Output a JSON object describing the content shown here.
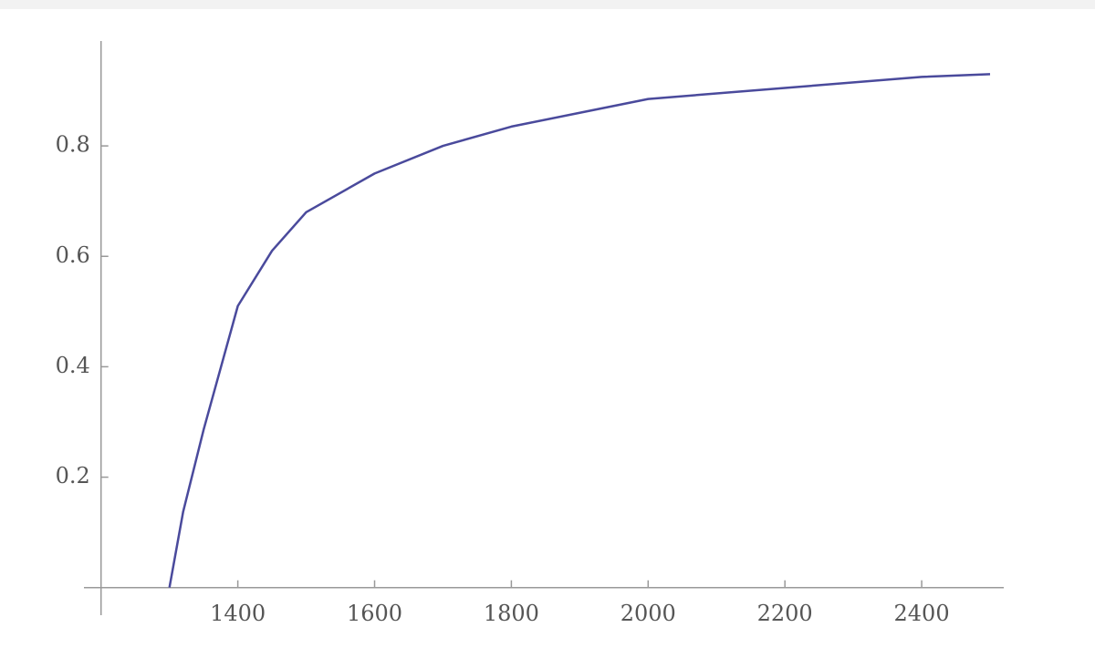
{
  "chart_data": {
    "type": "line",
    "x": [
      1300,
      1320,
      1350,
      1400,
      1450,
      1500,
      1600,
      1700,
      1800,
      1900,
      2000,
      2200,
      2400,
      2500
    ],
    "series": [
      {
        "color": "#4a4a9c",
        "values": [
          0,
          0.137,
          0.286,
          0.51,
          0.61,
          0.68,
          0.75,
          0.8,
          0.835,
          0.86,
          0.885,
          0.905,
          0.925,
          0.93
        ]
      }
    ],
    "xlim": [
      1175,
      2520
    ],
    "ylim": [
      -0.05,
      0.99
    ],
    "xticks": [
      1400,
      1600,
      1800,
      2000,
      2200,
      2400
    ],
    "yticks": [
      0.2,
      0.4,
      0.6,
      0.8
    ],
    "axes_origin": [
      1200,
      0
    ]
  }
}
